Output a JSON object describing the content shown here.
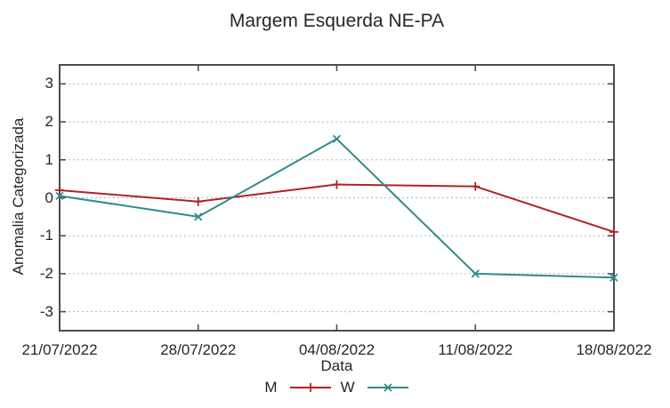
{
  "chart": {
    "title": "Margem Esquerda NE-PA",
    "xlabel": "Data",
    "ylabel": "Anomalia Categorizada"
  },
  "chart_data": {
    "type": "line",
    "title": "Margem Esquerda NE-PA",
    "xlabel": "Data",
    "ylabel": "Anomalia Categorizada",
    "categories": [
      "21/07/2022",
      "28/07/2022",
      "04/08/2022",
      "11/08/2022",
      "18/08/2022"
    ],
    "series": [
      {
        "name": "M",
        "color": "#b22222",
        "marker": "plus",
        "values": [
          0.2,
          -0.1,
          0.35,
          0.3,
          -0.9
        ]
      },
      {
        "name": "W",
        "color": "#2e8b8b",
        "marker": "cross",
        "values": [
          0.05,
          -0.5,
          1.55,
          -2.0,
          -2.1
        ]
      }
    ],
    "ylim": [
      -3.5,
      3.5
    ],
    "yticks": [
      3,
      2,
      1,
      0,
      -1,
      -2,
      -3
    ],
    "grid": true,
    "grid_style": "dotted",
    "legend_position": "bottom-center",
    "colors": {
      "border": "#4d4d4d",
      "gridline": "#b5b5b5",
      "text": "#262626"
    }
  }
}
